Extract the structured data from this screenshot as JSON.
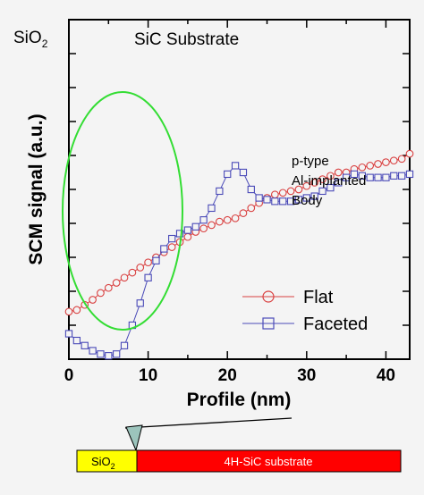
{
  "chart_data": {
    "type": "line",
    "xlabel": "Profile (nm)",
    "ylabel": "SCM signal (a.u.)",
    "xlim": [
      0,
      43
    ],
    "ylim": [
      0,
      10
    ],
    "xticks": [
      0,
      10,
      20,
      30,
      40
    ],
    "grid": false,
    "legend_position": "bottom-right",
    "series": [
      {
        "name": "Flat",
        "color": "#d94040",
        "marker": "circle",
        "x": [
          0,
          1,
          2,
          3,
          4,
          5,
          6,
          7,
          8,
          9,
          10,
          11,
          12,
          13,
          14,
          15,
          16,
          17,
          18,
          19,
          20,
          21,
          22,
          23,
          24,
          25,
          26,
          27,
          28,
          29,
          30,
          31,
          32,
          33,
          34,
          35,
          36,
          37,
          38,
          39,
          40,
          41,
          42,
          43
        ],
        "values": [
          1.4,
          1.45,
          1.6,
          1.75,
          1.95,
          2.1,
          2.25,
          2.4,
          2.55,
          2.7,
          2.85,
          3.0,
          3.15,
          3.3,
          3.45,
          3.6,
          3.75,
          3.85,
          3.95,
          4.05,
          4.1,
          4.15,
          4.3,
          4.45,
          4.6,
          4.75,
          4.85,
          4.9,
          4.95,
          5.0,
          5.1,
          5.2,
          5.3,
          5.4,
          5.5,
          5.5,
          5.6,
          5.65,
          5.7,
          5.75,
          5.8,
          5.85,
          5.9,
          6.05
        ]
      },
      {
        "name": "Faceted",
        "color": "#4a4ab8",
        "marker": "square",
        "x": [
          0,
          1,
          2,
          3,
          4,
          5,
          6,
          7,
          8,
          9,
          10,
          11,
          12,
          13,
          14,
          15,
          16,
          17,
          18,
          19,
          20,
          21,
          22,
          23,
          24,
          25,
          26,
          27,
          28,
          29,
          30,
          31,
          32,
          33,
          34,
          35,
          36,
          37,
          38,
          39,
          40,
          41,
          42,
          43
        ],
        "values": [
          0.75,
          0.55,
          0.4,
          0.25,
          0.15,
          0.1,
          0.15,
          0.4,
          1.0,
          1.65,
          2.4,
          2.9,
          3.25,
          3.55,
          3.7,
          3.8,
          3.9,
          4.1,
          4.45,
          4.95,
          5.45,
          5.7,
          5.5,
          5.0,
          4.75,
          4.7,
          4.65,
          4.65,
          4.65,
          4.7,
          4.75,
          4.8,
          4.95,
          5.05,
          5.2,
          5.35,
          5.45,
          5.4,
          5.35,
          5.35,
          5.35,
          5.4,
          5.4,
          5.45
        ]
      }
    ],
    "annotations": {
      "sio2_top_label": "SiO",
      "sio2_top_sub": "2",
      "substrate_label": "SiC Substrate",
      "body_label_line1": "p-type",
      "body_label_line2": "Al-implanted",
      "body_label_line3": "Body",
      "highlight_color": "#33dd33"
    }
  },
  "schematic": {
    "sio2_label": "SiO",
    "sio2_sub": "2",
    "substrate_label": "4H-SiC substrate",
    "sio2_color": "#ffff00",
    "substrate_color": "#ff0000",
    "tip_color": "#9cc4bc"
  }
}
